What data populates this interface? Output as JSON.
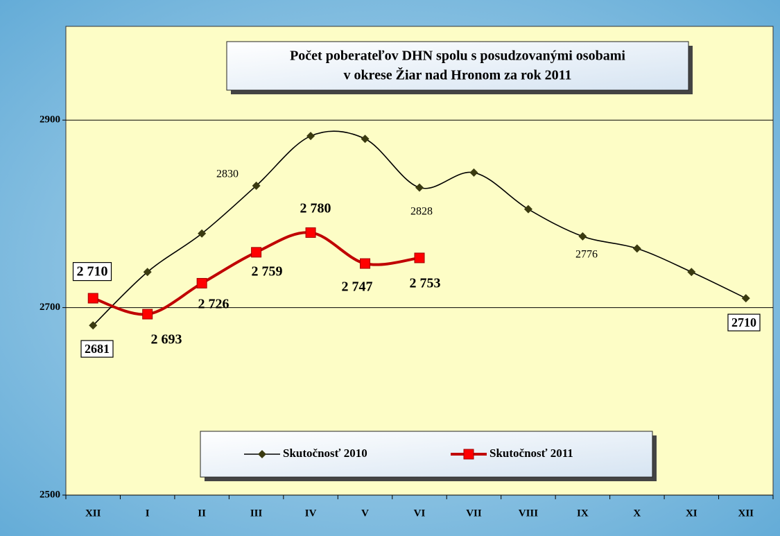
{
  "chart_data": {
    "type": "line",
    "title": [
      "Počet poberateľov DHN spolu s posudzovanými osobami",
      "v okrese  Žiar nad Hronom  za rok  2011"
    ],
    "categories": [
      "XII",
      "I",
      "II",
      "III",
      "IV",
      "V",
      "VI",
      "VII",
      "VIII",
      "IX",
      "X",
      "XI",
      "XII"
    ],
    "series": [
      {
        "name": "Skutočnosť 2010",
        "color": "#000000",
        "marker_color": "#3a3a10",
        "values": [
          2681,
          2738,
          2779,
          2830,
          2883,
          2880,
          2828,
          2844,
          2805,
          2776,
          2763,
          2738,
          2710
        ],
        "value_labels": [
          "2681",
          null,
          null,
          "2830",
          null,
          null,
          "2828",
          null,
          null,
          "2776",
          null,
          null,
          "2710"
        ]
      },
      {
        "name": "Skutočnosť 2011",
        "color": "#c00000",
        "marker_color": "#ff0000",
        "values": [
          2710,
          2693,
          2726,
          2759,
          2780,
          2747,
          2753,
          null,
          null,
          null,
          null,
          null,
          null
        ],
        "value_labels": [
          "2 710",
          "2 693",
          "2 726",
          "2 759",
          "2 780",
          "2 747",
          "2 753",
          null,
          null,
          null,
          null,
          null,
          null
        ]
      }
    ],
    "ylim": [
      2500,
      3000
    ],
    "yticks": [
      2500,
      2700,
      2900
    ],
    "grid": true
  }
}
